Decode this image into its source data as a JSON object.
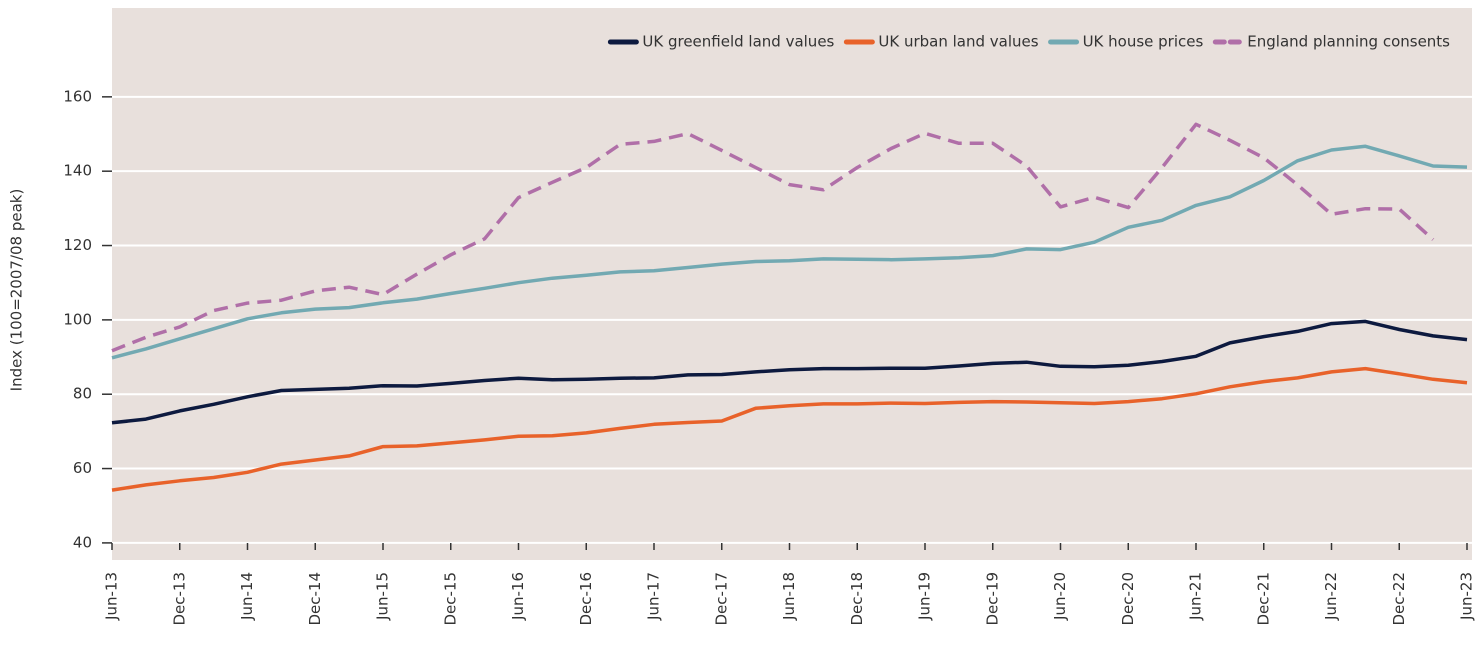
{
  "chart_data": {
    "type": "line",
    "y_label": "Index (100=2007/08 peak)",
    "categories": [
      "Jun-13",
      null,
      "Dec-13",
      null,
      "Jun-14",
      null,
      "Dec-14",
      null,
      "Jun-15",
      null,
      "Dec-15",
      null,
      "Jun-16",
      null,
      "Dec-16",
      null,
      "Jun-17",
      null,
      "Dec-17",
      null,
      "Jun-18",
      null,
      "Dec-18",
      null,
      "Jun-19",
      null,
      "Dec-19",
      null,
      "Jun-20",
      null,
      "Dec-20",
      null,
      "Jun-21",
      null,
      "Dec-21",
      null,
      "Jun-22",
      null,
      "Dec-22",
      null,
      "Jun-23"
    ],
    "series": [
      {
        "name": "UK greenfield land values",
        "color": "#0d1a3f",
        "linestyle": "solid",
        "values": [
          72.3,
          73.3,
          75.5,
          77.3,
          79.3,
          81,
          81.3,
          81.6,
          82.3,
          82.2,
          82.9,
          83.7,
          84.3,
          83.9,
          84,
          84.3,
          84.4,
          85.2,
          85.3,
          86,
          86.6,
          86.9,
          86.9,
          87,
          87,
          87.6,
          88.3,
          88.6,
          87.5,
          87.4,
          87.8,
          88.8,
          90.2,
          93.8,
          95.5,
          96.9,
          99,
          99.6,
          97.4,
          95.7,
          94.7
        ]
      },
      {
        "name": "UK urban land values",
        "color": "#e8622a",
        "linestyle": "solid",
        "values": [
          54.2,
          55.6,
          56.7,
          57.6,
          59,
          61.2,
          62.3,
          63.4,
          65.9,
          66.1,
          66.9,
          67.7,
          68.7,
          68.8,
          69.6,
          70.8,
          71.9,
          72.4,
          72.8,
          76.2,
          76.9,
          77.4,
          77.4,
          77.6,
          77.5,
          77.8,
          78,
          77.9,
          77.7,
          77.5,
          78,
          78.8,
          80.1,
          82,
          83.4,
          84.4,
          86,
          86.9,
          85.5,
          84,
          83.1
        ]
      },
      {
        "name": "UK house prices",
        "color": "#72a9b2",
        "linestyle": "solid",
        "values": [
          89.8,
          92.2,
          94.9,
          97.6,
          100.3,
          101.9,
          102.9,
          103.3,
          104.6,
          105.6,
          107.1,
          108.5,
          110,
          111.2,
          112,
          112.9,
          113.2,
          114.1,
          115,
          115.7,
          115.9,
          116.4,
          116.3,
          116.2,
          116.4,
          116.7,
          117.3,
          119.1,
          118.9,
          120.9,
          124.9,
          126.8,
          130.8,
          133.1,
          137.5,
          142.8,
          145.7,
          146.7,
          144.1,
          141.4,
          141.1
        ]
      },
      {
        "name": "England planning consents",
        "color": "#b06fa8",
        "linestyle": "dashed",
        "values": [
          91.7,
          95.3,
          98.1,
          102.5,
          104.5,
          105.3,
          107.8,
          108.8,
          106.8,
          112.3,
          117.5,
          121.8,
          132.9,
          137,
          141,
          147.2,
          148,
          150.1,
          145.6,
          141,
          136.4,
          135,
          141,
          146.1,
          150.2,
          147.5,
          147.5,
          141.4,
          130.4,
          133,
          130.2,
          141,
          152.6,
          148.3,
          143.6,
          136.3,
          128.4,
          129.9,
          129.8,
          121.6,
          null
        ]
      }
    ],
    "ylim": [
      35.4,
      183.9
    ],
    "yticks": [
      40,
      60,
      80,
      100,
      120,
      140,
      160
    ],
    "grid": true,
    "legend": "upper right"
  }
}
